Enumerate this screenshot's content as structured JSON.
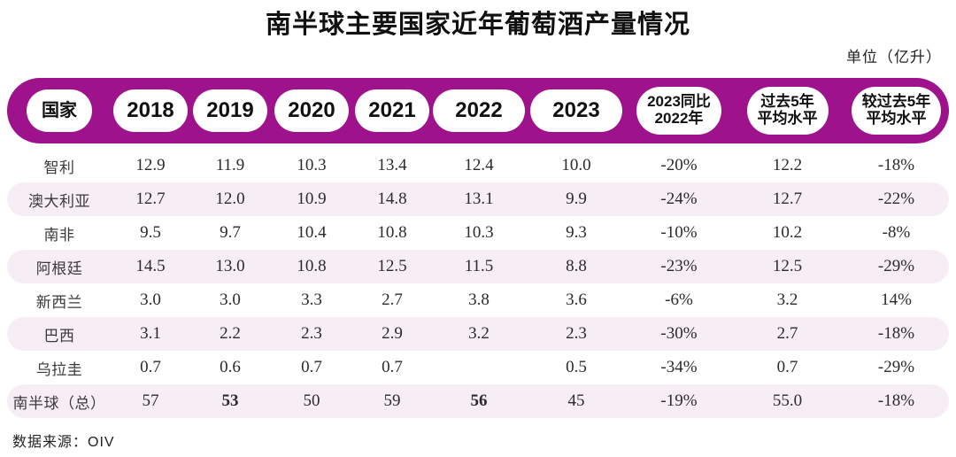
{
  "title": "南半球主要国家近年葡萄酒产量情况",
  "unit_label": "单位（亿升）",
  "source_label": "数据来源：OIV",
  "colors": {
    "header_bg": "#9E138C",
    "row_alt_bg": "#F7EDF5",
    "pill_bg": "#FFFFFF",
    "text": "#2B2B2B"
  },
  "table": {
    "columns": [
      "国家",
      "2018",
      "2019",
      "2020",
      "2021",
      "2022",
      "2023",
      "2023同比\n2022年",
      "过去5年\n平均水平",
      "较过去5年\n平均水平"
    ],
    "rows": [
      {
        "country": "智利",
        "values": [
          "12.9",
          "11.9",
          "10.3",
          "13.4",
          "12.4",
          "10.0",
          "-20%",
          "12.2",
          "-18%"
        ],
        "bold": []
      },
      {
        "country": "澳大利亚",
        "values": [
          "12.7",
          "12.0",
          "10.9",
          "14.8",
          "13.1",
          "9.9",
          "-24%",
          "12.7",
          "-22%"
        ],
        "bold": []
      },
      {
        "country": "南非",
        "values": [
          "9.5",
          "9.7",
          "10.4",
          "10.8",
          "10.3",
          "9.3",
          "-10%",
          "10.2",
          "-8%"
        ],
        "bold": []
      },
      {
        "country": "阿根廷",
        "values": [
          "14.5",
          "13.0",
          "10.8",
          "12.5",
          "11.5",
          "8.8",
          "-23%",
          "12.5",
          "-29%"
        ],
        "bold": []
      },
      {
        "country": "新西兰",
        "values": [
          "3.0",
          "3.0",
          "3.3",
          "2.7",
          "3.8",
          "3.6",
          "-6%",
          "3.2",
          "14%"
        ],
        "bold": []
      },
      {
        "country": "巴西",
        "values": [
          "3.1",
          "2.2",
          "2.3",
          "2.9",
          "3.2",
          "2.3",
          "-30%",
          "2.7",
          "-18%"
        ],
        "bold": []
      },
      {
        "country": "乌拉圭",
        "values": [
          "0.7",
          "0.6",
          "0.7",
          "0.7",
          "",
          "0.5",
          "-34%",
          "0.7",
          "-29%"
        ],
        "bold": []
      },
      {
        "country": "南半球（总）",
        "values": [
          "57",
          "53",
          "50",
          "59",
          "56",
          "45",
          "-19%",
          "55.0",
          "-18%"
        ],
        "bold": [
          1,
          4
        ]
      }
    ]
  },
  "chart_data": {
    "type": "table",
    "title": "南半球主要国家近年葡萄酒产量情况",
    "unit": "亿升",
    "source": "OIV",
    "columns": [
      "国家",
      "2018",
      "2019",
      "2020",
      "2021",
      "2022",
      "2023",
      "2023同比2022年",
      "过去5年平均水平",
      "较过去5年平均水平"
    ],
    "rows": [
      [
        "智利",
        12.9,
        11.9,
        10.3,
        13.4,
        12.4,
        10.0,
        "-20%",
        12.2,
        "-18%"
      ],
      [
        "澳大利亚",
        12.7,
        12.0,
        10.9,
        14.8,
        13.1,
        9.9,
        "-24%",
        12.7,
        "-22%"
      ],
      [
        "南非",
        9.5,
        9.7,
        10.4,
        10.8,
        10.3,
        9.3,
        "-10%",
        10.2,
        "-8%"
      ],
      [
        "阿根廷",
        14.5,
        13.0,
        10.8,
        12.5,
        11.5,
        8.8,
        "-23%",
        12.5,
        "-29%"
      ],
      [
        "新西兰",
        3.0,
        3.0,
        3.3,
        2.7,
        3.8,
        3.6,
        "-6%",
        3.2,
        "14%"
      ],
      [
        "巴西",
        3.1,
        2.2,
        2.3,
        2.9,
        3.2,
        2.3,
        "-30%",
        2.7,
        "-18%"
      ],
      [
        "乌拉圭",
        0.7,
        0.6,
        0.7,
        0.7,
        null,
        0.5,
        "-34%",
        0.7,
        "-29%"
      ],
      [
        "南半球（总）",
        57,
        53,
        50,
        59,
        56,
        45,
        "-19%",
        55.0,
        "-18%"
      ]
    ]
  }
}
